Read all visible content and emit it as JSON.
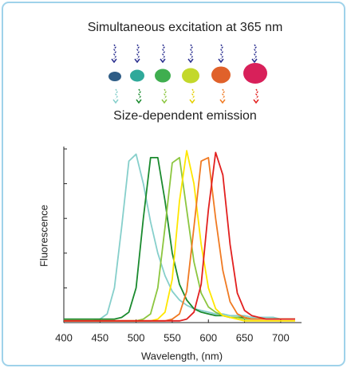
{
  "chart_data": {
    "type": "line",
    "title": "Simultaneous excitation at 365 nm",
    "subtitle": "Size-dependent emission",
    "xlabel": "Wavelength, (nm)",
    "ylabel": "Fluorescence",
    "x": [
      400,
      410,
      420,
      430,
      440,
      450,
      460,
      470,
      480,
      490,
      500,
      510,
      520,
      530,
      540,
      550,
      560,
      570,
      580,
      590,
      600,
      610,
      620,
      630,
      640,
      650,
      660,
      670,
      680,
      690,
      700,
      710,
      720
    ],
    "xlim": [
      400,
      720
    ],
    "xticks": [
      400,
      450,
      500,
      550,
      600,
      650,
      700
    ],
    "ylim": [
      0,
      1
    ],
    "yticks": [
      0,
      0.2,
      0.4,
      0.6,
      0.8,
      1
    ],
    "series": [
      {
        "color": "#86cfcb",
        "values": [
          0.01,
          0.01,
          0.01,
          0.01,
          0.01,
          0.02,
          0.05,
          0.2,
          0.55,
          0.93,
          0.97,
          0.8,
          0.58,
          0.4,
          0.27,
          0.18,
          0.13,
          0.1,
          0.08,
          0.07,
          0.06,
          0.05,
          0.05,
          0.04,
          0.04,
          0.04,
          0.03,
          0.03,
          0.03,
          0.03,
          0.02,
          0.02,
          0.02
        ]
      },
      {
        "color": "#1a8a2e",
        "values": [
          0.02,
          0.02,
          0.02,
          0.02,
          0.02,
          0.02,
          0.02,
          0.02,
          0.03,
          0.06,
          0.2,
          0.6,
          0.95,
          0.95,
          0.7,
          0.4,
          0.22,
          0.13,
          0.08,
          0.06,
          0.05,
          0.04,
          0.04,
          0.03,
          0.03,
          0.03,
          0.02,
          0.02,
          0.02,
          0.02,
          0.02,
          0.02,
          0.02
        ]
      },
      {
        "color": "#8cc63f",
        "values": [
          0.01,
          0.01,
          0.01,
          0.01,
          0.01,
          0.01,
          0.01,
          0.01,
          0.01,
          0.01,
          0.01,
          0.02,
          0.05,
          0.2,
          0.55,
          0.92,
          0.95,
          0.65,
          0.35,
          0.17,
          0.09,
          0.06,
          0.04,
          0.03,
          0.03,
          0.02,
          0.02,
          0.02,
          0.02,
          0.02,
          0.02,
          0.02,
          0.02
        ]
      },
      {
        "color": "#ffe600",
        "values": [
          0.01,
          0.01,
          0.01,
          0.01,
          0.01,
          0.01,
          0.01,
          0.01,
          0.01,
          0.01,
          0.01,
          0.01,
          0.01,
          0.02,
          0.06,
          0.25,
          0.7,
          0.99,
          0.8,
          0.45,
          0.2,
          0.08,
          0.04,
          0.03,
          0.02,
          0.01,
          0.01,
          0.01,
          0.01,
          0.01,
          0.01,
          0.01,
          0.01
        ]
      },
      {
        "color": "#f07a22",
        "values": [
          0.01,
          0.01,
          0.01,
          0.01,
          0.01,
          0.01,
          0.01,
          0.01,
          0.01,
          0.01,
          0.01,
          0.01,
          0.01,
          0.01,
          0.01,
          0.02,
          0.05,
          0.18,
          0.55,
          0.93,
          0.95,
          0.6,
          0.3,
          0.12,
          0.05,
          0.03,
          0.02,
          0.02,
          0.02,
          0.02,
          0.02,
          0.02,
          0.02
        ]
      },
      {
        "color": "#e2201f",
        "values": [
          0.01,
          0.01,
          0.01,
          0.01,
          0.01,
          0.01,
          0.01,
          0.01,
          0.01,
          0.01,
          0.01,
          0.01,
          0.01,
          0.01,
          0.01,
          0.01,
          0.01,
          0.02,
          0.06,
          0.22,
          0.65,
          0.98,
          0.85,
          0.45,
          0.17,
          0.07,
          0.04,
          0.03,
          0.02,
          0.02,
          0.02,
          0.02,
          0.02
        ]
      }
    ]
  }
}
